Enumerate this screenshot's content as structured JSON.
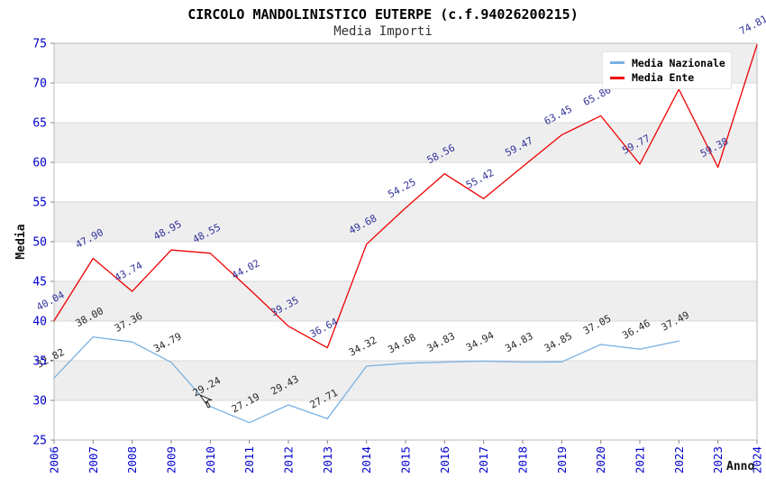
{
  "header": {
    "title": "CIRCOLO MANDOLINISTICO EUTERPE (c.f.94026200215)",
    "subtitle": "Media Importi"
  },
  "legend": {
    "position": "top-right",
    "items": [
      {
        "label": "Media Nazionale",
        "color": "#79b1e1"
      },
      {
        "label": "Media Ente",
        "color": "#ee0000"
      }
    ]
  },
  "axes": {
    "y_title": "Media",
    "x_title": "Anno",
    "y_ticks": [
      25,
      30,
      35,
      40,
      45,
      50,
      55,
      60,
      65,
      70,
      75
    ],
    "x_ticks": [
      "2006",
      "2007",
      "2008",
      "2009",
      "2010",
      "2011",
      "2012",
      "2013",
      "2014",
      "2015",
      "2016",
      "2017",
      "2018",
      "2019",
      "2020",
      "2021",
      "2022",
      "2023",
      "2024"
    ]
  },
  "colors": {
    "band_gray": "#eeeeee",
    "gridline": "#d8d8d8",
    "plot_border": "#bbbbbb",
    "tick_mark": "#888888",
    "tick_label": "#0000cc",
    "axis_title": "#111111"
  },
  "chart_data": {
    "type": "line",
    "title": "CIRCOLO MANDOLINISTICO EUTERPE (c.f.94026200215)",
    "subtitle": "Media Importi",
    "xlabel": "Anno",
    "ylabel": "Media",
    "ylim": [
      25,
      75
    ],
    "ytick_step": 5,
    "grid": "horizontal-bands",
    "legend_position": "top-right",
    "x": [
      2006,
      2007,
      2008,
      2009,
      2010,
      2011,
      2012,
      2013,
      2014,
      2015,
      2016,
      2017,
      2018,
      2019,
      2020,
      2021,
      2022,
      2023,
      2024
    ],
    "series": [
      {
        "name": "Media Nazionale",
        "color": "#79b1e1",
        "label_color": "#2a2a2a",
        "values": [
          32.82,
          38.0,
          37.36,
          34.79,
          29.24,
          27.19,
          29.43,
          27.71,
          34.32,
          34.68,
          34.83,
          34.94,
          34.83,
          34.85,
          37.05,
          36.46,
          37.49,
          null,
          null
        ],
        "labels": [
          "32.82",
          "38.00",
          "37.36",
          "34.79",
          "29.24",
          "27.19",
          "29.43",
          "27.71",
          "34.32",
          "34.68",
          "34.83",
          "34.94",
          "34.83",
          "34.85",
          "37.05",
          "36.46",
          "37.49",
          "",
          ""
        ]
      },
      {
        "name": "Media Ente",
        "color": "#ee0000",
        "label_color": "#32329b",
        "values": [
          40.04,
          47.9,
          43.74,
          48.95,
          48.55,
          44.02,
          39.35,
          36.64,
          49.68,
          54.25,
          58.56,
          55.42,
          59.47,
          63.45,
          65.86,
          59.77,
          69.2,
          59.38,
          74.81
        ],
        "labels": [
          "40.04",
          "47.90",
          "43.74",
          "48.95",
          "48.55",
          "44.02",
          "39.35",
          "36.64",
          "49.68",
          "54.25",
          "58.56",
          "55.42",
          "59.47",
          "63.45",
          "65.86",
          "59.77",
          "",
          "59.38",
          "74.81"
        ]
      }
    ]
  }
}
